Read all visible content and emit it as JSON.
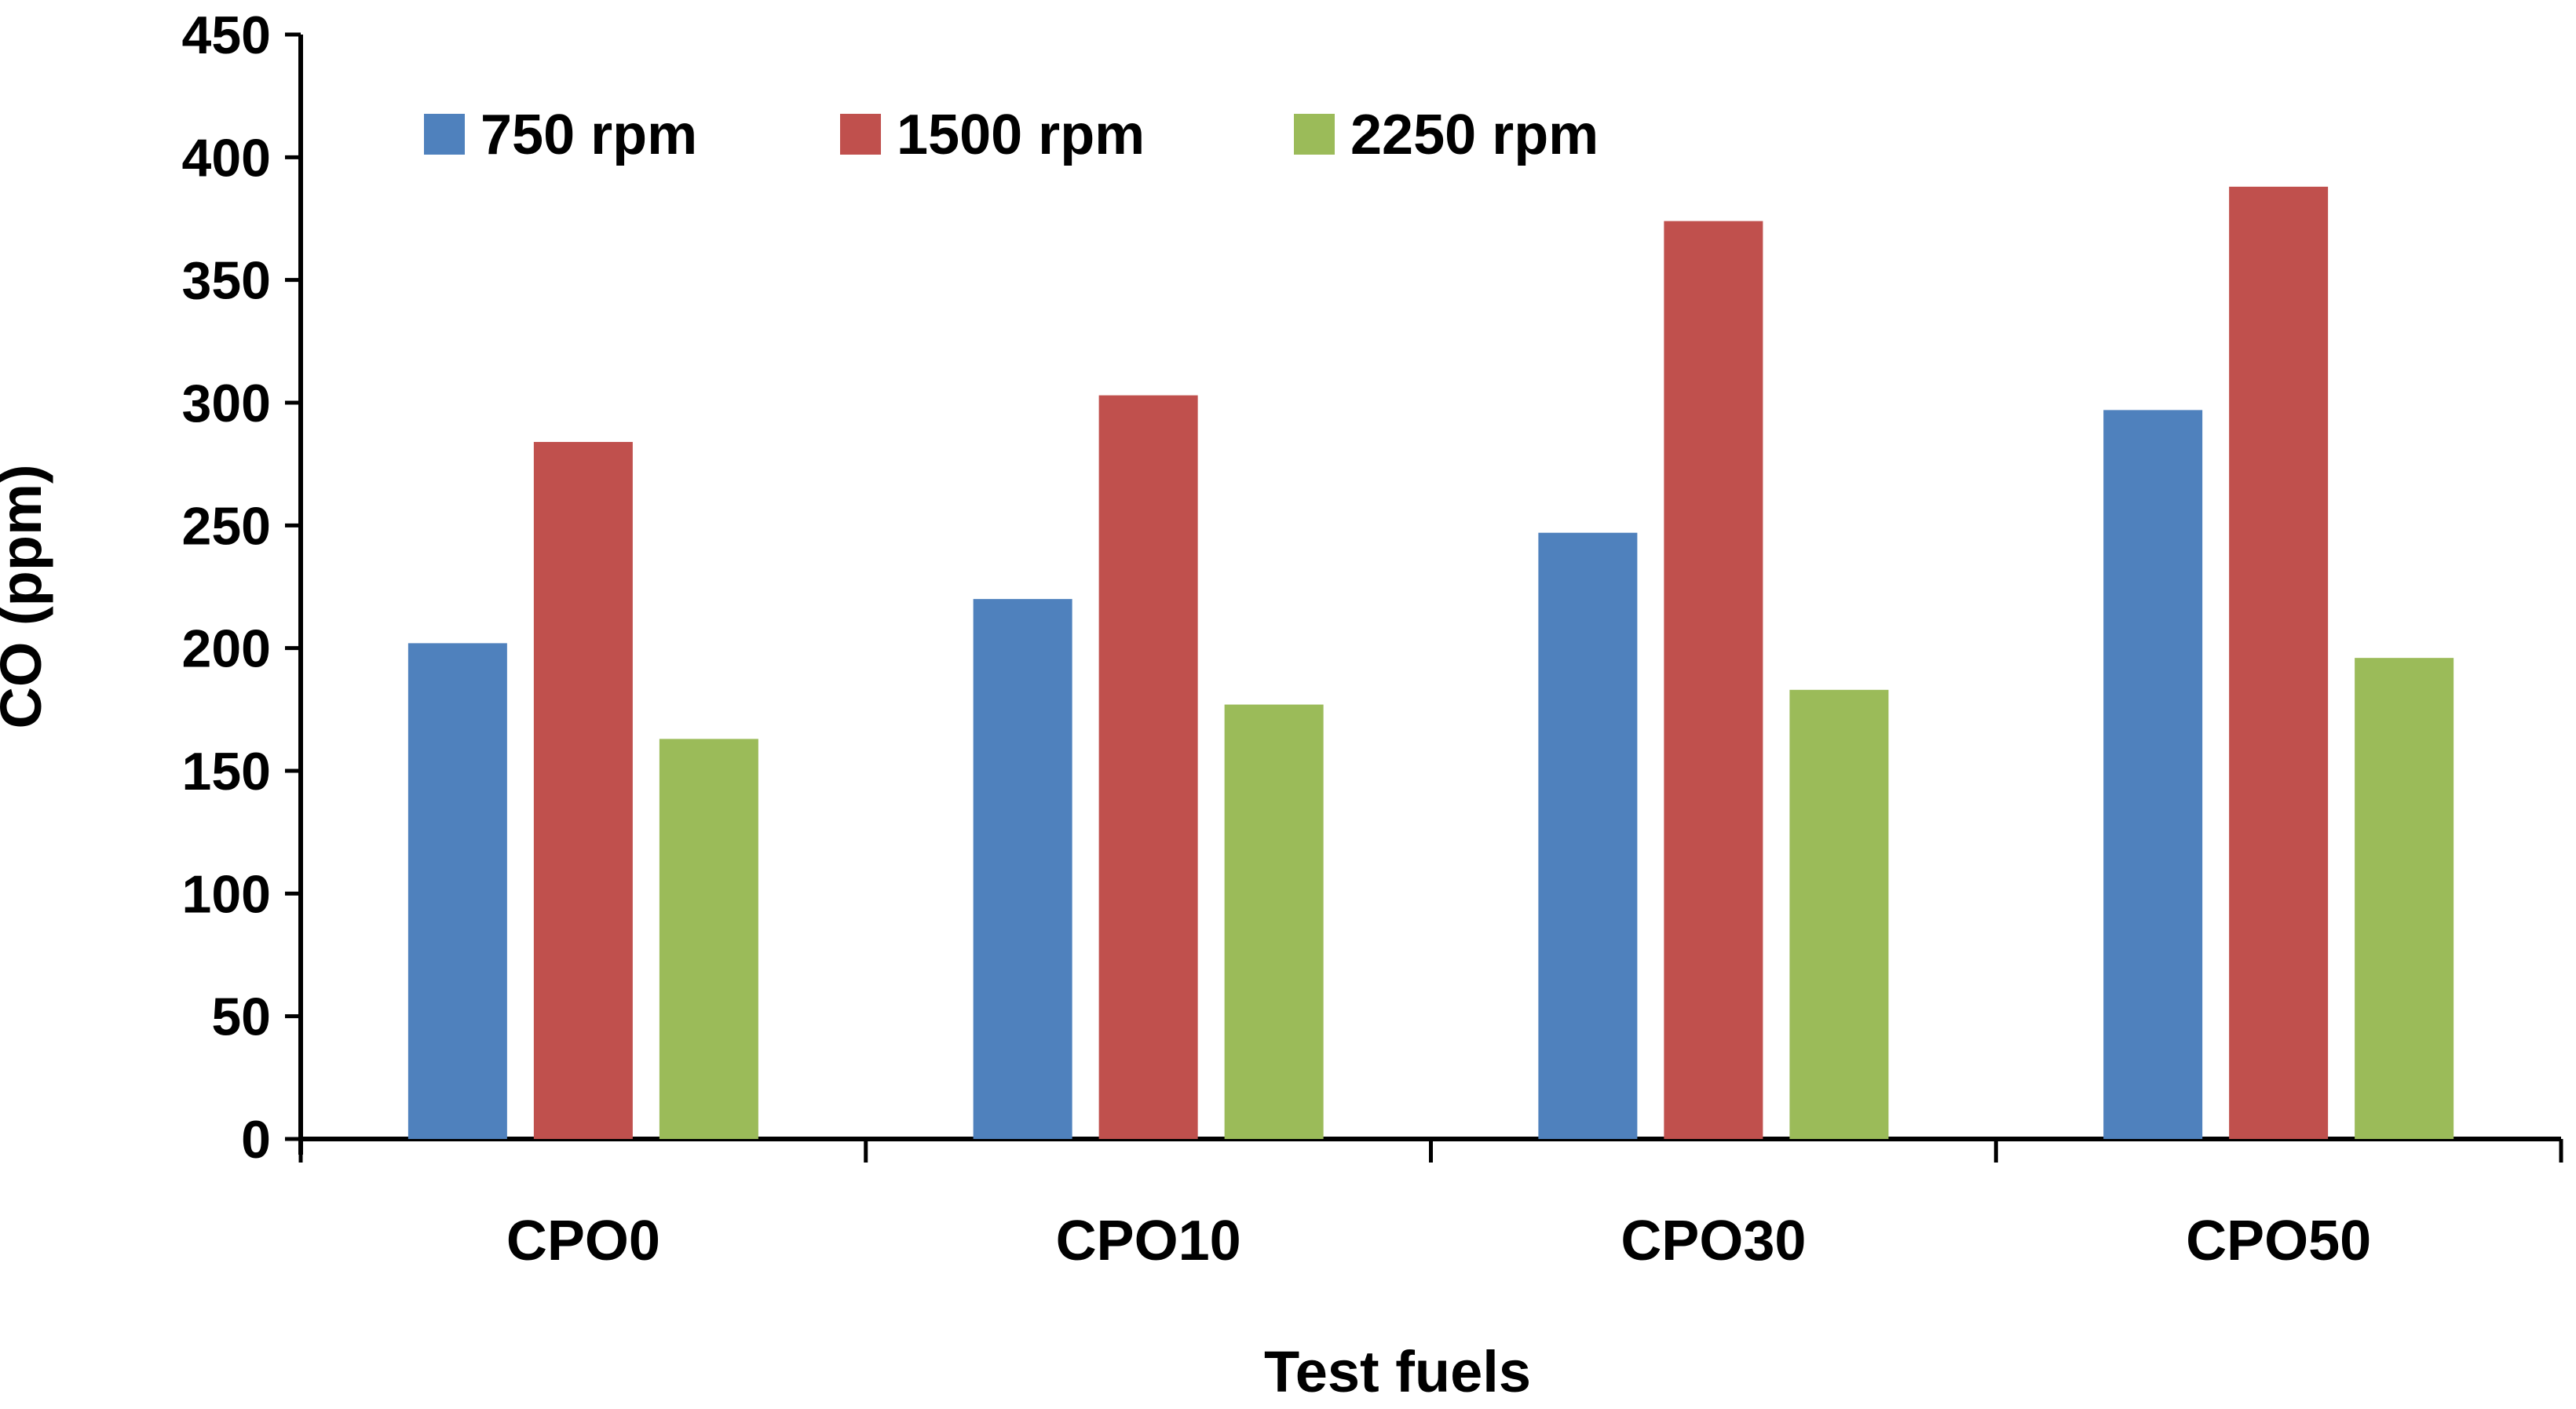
{
  "chart_data": {
    "type": "bar",
    "title": "",
    "xlabel": "Test fuels",
    "ylabel": "CO (ppm)",
    "ylim": [
      0,
      450
    ],
    "yticks": [
      0,
      50,
      100,
      150,
      200,
      250,
      300,
      350,
      400,
      450
    ],
    "grid": false,
    "legend_position": "top-left",
    "categories": [
      "CPO0",
      "CPO10",
      "CPO30",
      "CPO50"
    ],
    "series": [
      {
        "name": "750 rpm",
        "color": "#4F81BD",
        "values": [
          202,
          220,
          247,
          297
        ]
      },
      {
        "name": "1500 rpm",
        "color": "#C0504D",
        "values": [
          284,
          303,
          374,
          388
        ]
      },
      {
        "name": "2250 rpm",
        "color": "#9BBB59",
        "values": [
          163,
          177,
          183,
          196
        ]
      }
    ]
  }
}
